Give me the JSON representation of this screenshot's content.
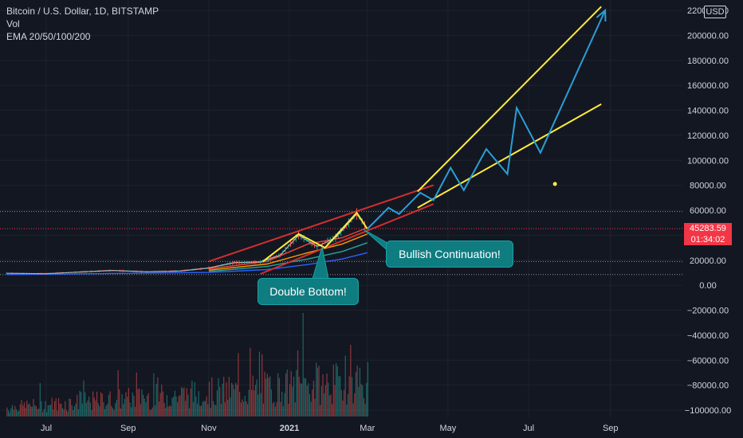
{
  "legend": {
    "symbol": "Bitcoin / U.S. Dollar, 1D, BITSTAMP",
    "vol": "Vol",
    "ema": "EMA 20/50/100/200"
  },
  "currency_badge": "USD",
  "last_price": "45283.59",
  "countdown": "01:34:02",
  "annotations": {
    "double_bottom": "Double Bottom!",
    "bullish": "Bullish Continuation!"
  },
  "colors": {
    "background": "#131722",
    "grid": "#1e222d",
    "text": "#d1d4dc",
    "red_line": "#d32f2f",
    "yellow_line": "#ffeb3b",
    "projection": "#2a9fd6",
    "price_tag": "#f23645",
    "callout": "#0f7c80",
    "vol_up": "#26a69a",
    "vol_down": "#ef5350",
    "ema20": "#f44336",
    "ema50": "#ff9800",
    "ema100": "#26a69a",
    "ema200": "#2962ff"
  },
  "chart_data": {
    "type": "line",
    "y_axis": {
      "ticks": [
        "220000.00",
        "200000.00",
        "180000.00",
        "160000.00",
        "140000.00",
        "120000.00",
        "100000.00",
        "80000.00",
        "60000.00",
        "40000.00",
        "20000.00",
        "0.00",
        "−20000.00",
        "−40000.00",
        "−60000.00",
        "−80000.00",
        "−100000.00"
      ],
      "tick_values": [
        220000,
        200000,
        180000,
        160000,
        140000,
        120000,
        100000,
        80000,
        60000,
        40000,
        20000,
        0,
        -20000,
        -40000,
        -60000,
        -80000,
        -100000
      ],
      "range": [
        -105000,
        225000
      ]
    },
    "x_axis": {
      "ticks": [
        "Jul",
        "Sep",
        "Nov",
        "2021",
        "Mar",
        "May",
        "Jul",
        "Sep"
      ],
      "bold_tick": "2021"
    },
    "grid": true,
    "series": [
      {
        "name": "price",
        "points": [
          [
            "2020-06-01",
            9500
          ],
          [
            "2020-07-01",
            9200
          ],
          [
            "2020-07-25",
            10500
          ],
          [
            "2020-08-20",
            11800
          ],
          [
            "2020-09-15",
            10700
          ],
          [
            "2020-10-10",
            11300
          ],
          [
            "2020-11-01",
            13800
          ],
          [
            "2020-11-20",
            18000
          ],
          [
            "2020-12-10",
            18600
          ],
          [
            "2020-12-25",
            24000
          ],
          [
            "2021-01-08",
            40000
          ],
          [
            "2021-01-22",
            31000
          ],
          [
            "2021-02-05",
            38000
          ],
          [
            "2021-02-21",
            57000
          ],
          [
            "2021-03-01",
            45283.59
          ]
        ]
      },
      {
        "name": "projection",
        "points": [
          [
            "2021-03-01",
            45000
          ],
          [
            "2021-03-17",
            62000
          ],
          [
            "2021-03-25",
            57000
          ],
          [
            "2021-04-10",
            74000
          ],
          [
            "2021-04-20",
            68000
          ],
          [
            "2021-05-03",
            94000
          ],
          [
            "2021-05-13",
            76000
          ],
          [
            "2021-05-30",
            109000
          ],
          [
            "2021-06-15",
            89000
          ],
          [
            "2021-06-22",
            142000
          ],
          [
            "2021-07-10",
            106000
          ],
          [
            "2021-08-28",
            220000
          ]
        ]
      }
    ],
    "price_line": 45283.59,
    "dotted_levels": [
      59000,
      19000,
      8500
    ],
    "double_bottom_pattern": [
      [
        "2020-12-12",
        19000
      ],
      [
        "2021-01-08",
        41000
      ],
      [
        "2021-01-28",
        30000
      ],
      [
        "2021-02-21",
        58000
      ],
      [
        "2021-03-01",
        45000
      ]
    ],
    "red_channel": {
      "upper": [
        [
          "2020-11-01",
          19000
        ],
        [
          "2021-04-20",
          80000
        ]
      ],
      "lower": [
        [
          "2020-12-10",
          9000
        ],
        [
          "2021-04-20",
          65000
        ]
      ]
    },
    "yellow_channel": {
      "upper": [
        [
          "2021-04-08",
          75000
        ],
        [
          "2021-08-25",
          223000
        ]
      ],
      "lower": [
        [
          "2021-04-08",
          62000
        ],
        [
          "2021-08-25",
          145000
        ]
      ]
    },
    "marker_point": [
      "2021-07-21",
      81000
    ],
    "ema": [
      {
        "name": "EMA 20",
        "points": [
          [
            "2020-11-01",
            13000
          ],
          [
            "2020-12-15",
            19000
          ],
          [
            "2021-01-15",
            33000
          ],
          [
            "2021-02-10",
            38000
          ],
          [
            "2021-03-01",
            46000
          ]
        ]
      },
      {
        "name": "EMA 50",
        "points": [
          [
            "2020-11-01",
            12000
          ],
          [
            "2020-12-15",
            17000
          ],
          [
            "2021-01-15",
            26000
          ],
          [
            "2021-02-10",
            33000
          ],
          [
            "2021-03-01",
            41000
          ]
        ]
      },
      {
        "name": "EMA 100",
        "points": [
          [
            "2020-11-01",
            11000
          ],
          [
            "2020-12-15",
            15000
          ],
          [
            "2021-01-15",
            21000
          ],
          [
            "2021-02-10",
            27000
          ],
          [
            "2021-03-01",
            34000
          ]
        ]
      },
      {
        "name": "EMA 200",
        "points": [
          [
            "2020-06-01",
            8500
          ],
          [
            "2020-11-01",
            10200
          ],
          [
            "2020-12-15",
            12500
          ],
          [
            "2021-01-15",
            16500
          ],
          [
            "2021-02-10",
            21000
          ],
          [
            "2021-03-01",
            26000
          ]
        ]
      }
    ],
    "volume": {
      "start": "2020-06-01",
      "end": "2021-03-01",
      "max_height_fraction": 0.95
    }
  }
}
